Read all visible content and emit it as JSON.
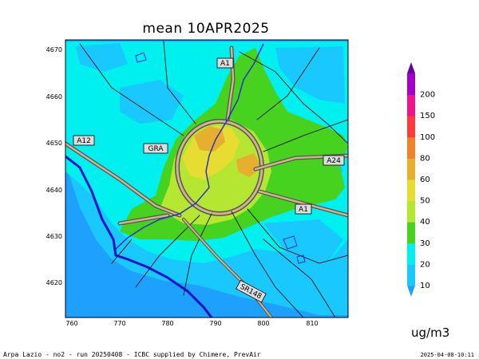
{
  "map": {
    "title": "mean 10APR2025",
    "x_ticks": [
      "760",
      "770",
      "780",
      "790",
      "800",
      "810"
    ],
    "y_ticks": [
      "4670",
      "4660",
      "4650",
      "4640",
      "4630",
      "4620"
    ],
    "road_labels": [
      "A1",
      "A12",
      "GRA",
      "A24",
      "A1",
      "SR148"
    ]
  },
  "legend": {
    "levels": [
      "10",
      "20",
      "30",
      "40",
      "50",
      "60",
      "80",
      "100",
      "150",
      "200"
    ],
    "colors": [
      "#1ea0ff",
      "#18c8ff",
      "#00f0f0",
      "#46d21e",
      "#b4e632",
      "#e6dc32",
      "#e6af2d",
      "#f0822d",
      "#fa3c3c",
      "#f0148c",
      "#a000c8",
      "#6400a0"
    ],
    "unit": "ug/m3"
  },
  "footer": {
    "credits": "Arpa Lazio - no2 - run 20250408 - ICBC supplied by Chimere, PrevAir",
    "timestamp": "2025-04-08-10:11"
  }
}
